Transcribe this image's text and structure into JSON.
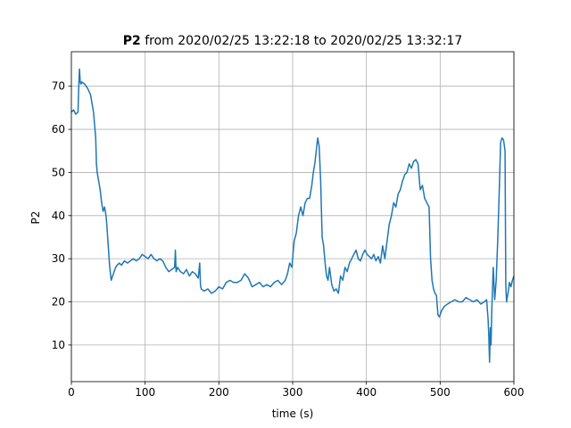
{
  "chart_data": {
    "type": "line",
    "title_bold": "P2",
    "title_rest": " from 2020/02/25 13:22:18 to 2020/02/25 13:32:17",
    "xlabel": "time (s)",
    "ylabel": "P2",
    "xlim": [
      0,
      600
    ],
    "ylim": [
      1.5,
      78
    ],
    "xticks": [
      0,
      100,
      200,
      300,
      400,
      500,
      600
    ],
    "yticks": [
      10,
      20,
      30,
      40,
      50,
      60,
      70
    ],
    "grid": true,
    "color": "#1f77b4",
    "series": [
      {
        "x": [
          0,
          3,
          6,
          9,
          10,
          11,
          12,
          13,
          14,
          18,
          22,
          26,
          30,
          33,
          34,
          35,
          37,
          39,
          41,
          43,
          45,
          47,
          48,
          50,
          52,
          54,
          56,
          58,
          60,
          62,
          65,
          68,
          72,
          76,
          80,
          84,
          88,
          92,
          96,
          100,
          104,
          108,
          112,
          116,
          120,
          124,
          128,
          132,
          136,
          140,
          141,
          142,
          144,
          148,
          152,
          156,
          160,
          164,
          168,
          172,
          174,
          175,
          176,
          180,
          185,
          190,
          195,
          200,
          205,
          210,
          215,
          220,
          225,
          230,
          235,
          240,
          245,
          250,
          255,
          260,
          265,
          270,
          275,
          280,
          285,
          290,
          293,
          296,
          299,
          302,
          305,
          308,
          311,
          314,
          317,
          320,
          323,
          326,
          328,
          330,
          332,
          334,
          336,
          338,
          340,
          342,
          344,
          346,
          348,
          350,
          353,
          356,
          359,
          362,
          365,
          368,
          371,
          374,
          377,
          380,
          383,
          386,
          389,
          392,
          395,
          398,
          401,
          404,
          407,
          410,
          413,
          416,
          419,
          422,
          425,
          428,
          431,
          434,
          437,
          440,
          443,
          446,
          449,
          452,
          455,
          458,
          461,
          464,
          467,
          470,
          473,
          476,
          479,
          482,
          485,
          487,
          489,
          491,
          493,
          495,
          497,
          499,
          502,
          506,
          510,
          515,
          520,
          525,
          530,
          535,
          540,
          545,
          550,
          555,
          560,
          563,
          565,
          566,
          567,
          568,
          569,
          570,
          572,
          574,
          576,
          578,
          580,
          582,
          584,
          586,
          588,
          589,
          590,
          592,
          594,
          596,
          598,
          600
        ],
        "y": [
          64,
          64.5,
          63.5,
          64,
          70,
          74,
          71,
          70.5,
          71,
          70.5,
          69.5,
          68,
          64,
          58,
          52,
          50,
          48,
          46,
          43,
          41,
          42,
          40,
          38,
          33,
          28,
          25,
          26,
          27,
          28,
          28.5,
          29,
          28.5,
          29.5,
          29,
          29.5,
          30,
          29.5,
          30,
          31,
          30.5,
          30,
          31,
          30,
          29.5,
          30,
          29.5,
          28,
          27,
          27.5,
          28,
          32,
          27,
          28,
          27,
          26.5,
          27.5,
          26,
          27,
          26.5,
          25.5,
          29,
          24,
          23,
          22.5,
          23,
          22,
          22.5,
          23.5,
          23,
          24.5,
          25,
          24.5,
          24.5,
          25,
          26.5,
          25.5,
          23.5,
          24,
          24.5,
          23.5,
          24,
          23.5,
          24.5,
          25,
          24,
          25,
          26.5,
          29,
          28,
          34,
          36,
          40,
          42,
          40,
          43,
          44,
          44,
          47,
          50,
          52,
          55,
          58,
          56,
          48,
          35,
          33,
          29,
          26,
          25,
          28,
          24,
          22.5,
          23,
          22,
          26,
          25,
          28,
          27,
          29,
          30,
          31,
          32,
          30,
          29.5,
          31,
          32,
          31,
          30.5,
          30,
          31,
          29.5,
          30.5,
          29,
          33,
          30,
          34,
          38,
          40,
          43,
          42,
          45,
          46,
          48,
          49.5,
          50,
          52,
          51,
          52.5,
          53,
          52,
          46,
          47,
          44,
          43,
          42,
          30,
          25,
          23,
          22,
          21.5,
          17,
          16.5,
          18,
          19,
          19.5,
          20,
          20.5,
          20,
          20,
          21,
          20.5,
          20,
          20.5,
          19.5,
          20,
          20.5,
          16,
          12,
          6,
          14,
          10,
          18,
          28,
          20.5,
          25,
          34,
          45,
          57,
          58,
          57.5,
          55,
          24,
          20,
          22,
          24.5,
          23.5,
          25,
          26
        ]
      }
    ]
  }
}
